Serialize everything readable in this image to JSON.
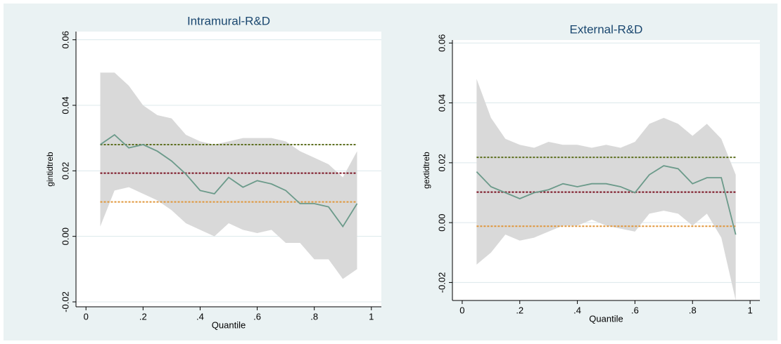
{
  "chart_data": [
    {
      "type": "line",
      "title": "Intramural-R&D",
      "y_label": "gintidtreb",
      "x_label": "Quantile",
      "x": [
        0.05,
        0.1,
        0.15,
        0.2,
        0.25,
        0.3,
        0.35,
        0.4,
        0.45,
        0.5,
        0.55,
        0.6,
        0.65,
        0.7,
        0.75,
        0.8,
        0.85,
        0.9,
        0.95
      ],
      "series": [
        {
          "color": "#6b9a8a",
          "values": [
            0.028,
            0.031,
            0.027,
            0.028,
            0.026,
            0.023,
            0.019,
            0.014,
            0.013,
            0.018,
            0.015,
            0.017,
            0.016,
            0.014,
            0.01,
            0.01,
            0.009,
            0.003,
            0.01
          ]
        }
      ],
      "band": {
        "color": "#d9d9d9",
        "upper": [
          0.05,
          0.05,
          0.046,
          0.04,
          0.037,
          0.036,
          0.031,
          0.029,
          0.028,
          0.029,
          0.03,
          0.03,
          0.03,
          0.029,
          0.026,
          0.024,
          0.022,
          0.018,
          0.026
        ],
        "lower": [
          0.003,
          0.014,
          0.015,
          0.013,
          0.011,
          0.008,
          0.004,
          0.002,
          0.0,
          0.004,
          0.002,
          0.001,
          0.002,
          -0.002,
          -0.002,
          -0.007,
          -0.007,
          -0.013,
          -0.01
        ]
      },
      "hlines": [
        {
          "value": 0.028,
          "color": "#5c6e1e"
        },
        {
          "value": 0.0193,
          "color": "#7a1020"
        },
        {
          "value": 0.0105,
          "color": "#e0963a"
        }
      ],
      "xlim": [
        -0.035,
        1.035
      ],
      "ylim": [
        -0.0215,
        0.0625
      ],
      "xticks": [
        0,
        {
          "value": 0.2,
          "label": ".2"
        },
        {
          "value": 0.4,
          "label": ".4"
        },
        {
          "value": 0.6,
          "label": ".6"
        },
        {
          "value": 0.8,
          "label": ".8"
        },
        1
      ],
      "yticks": [
        -0.02,
        {
          "value": 0,
          "label": "0.00"
        },
        0.02,
        0.04,
        0.06
      ],
      "grid": true
    },
    {
      "type": "line",
      "title": "External-R&D",
      "y_label": "gextidtreb",
      "x_label": "Quantile",
      "x": [
        0.05,
        0.1,
        0.15,
        0.2,
        0.25,
        0.3,
        0.35,
        0.4,
        0.45,
        0.5,
        0.55,
        0.6,
        0.65,
        0.7,
        0.75,
        0.8,
        0.85,
        0.9,
        0.95
      ],
      "series": [
        {
          "color": "#6b9a8a",
          "values": [
            0.017,
            0.012,
            0.01,
            0.008,
            0.01,
            0.011,
            0.013,
            0.012,
            0.013,
            0.013,
            0.012,
            0.01,
            0.016,
            0.019,
            0.018,
            0.013,
            0.015,
            0.015,
            -0.004
          ]
        }
      ],
      "band": {
        "color": "#d9d9d9",
        "upper": [
          0.048,
          0.035,
          0.028,
          0.026,
          0.025,
          0.027,
          0.026,
          0.026,
          0.025,
          0.026,
          0.025,
          0.027,
          0.033,
          0.035,
          0.033,
          0.029,
          0.033,
          0.028,
          0.016
        ],
        "lower": [
          -0.014,
          -0.01,
          -0.004,
          -0.006,
          -0.005,
          -0.003,
          -0.001,
          -0.001,
          0.001,
          -0.001,
          -0.002,
          -0.003,
          0.003,
          0.004,
          0.003,
          -0.001,
          0.003,
          -0.005,
          -0.026
        ]
      },
      "hlines": [
        {
          "value": 0.0218,
          "color": "#5c6e1e"
        },
        {
          "value": 0.0102,
          "color": "#7a1020"
        },
        {
          "value": -0.0012,
          "color": "#e0963a"
        }
      ],
      "xlim": [
        -0.034,
        1.034
      ],
      "ylim": [
        -0.026,
        0.061
      ],
      "xticks": [
        0,
        {
          "value": 0.2,
          "label": ".2"
        },
        {
          "value": 0.4,
          "label": ".4"
        },
        {
          "value": 0.6,
          "label": ".6"
        },
        {
          "value": 0.8,
          "label": ".8"
        },
        1
      ],
      "yticks": [
        -0.02,
        {
          "value": 0,
          "label": "0.00"
        },
        0.02,
        0.04,
        0.06
      ],
      "grid": true
    }
  ]
}
